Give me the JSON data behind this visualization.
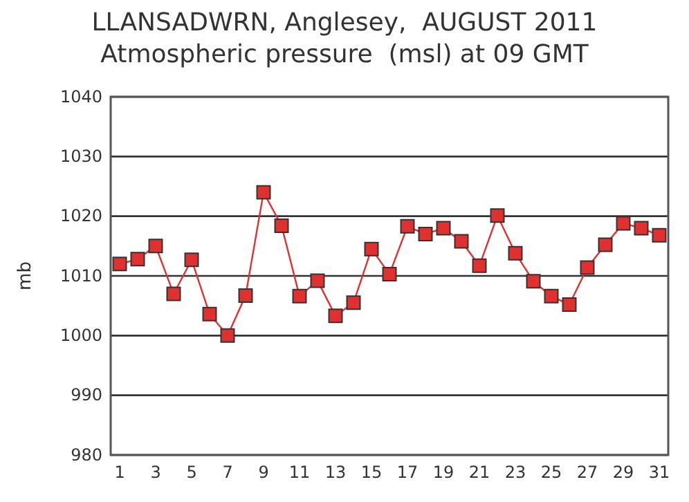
{
  "chart_data": {
    "type": "line",
    "title": "LLANSADWRN, Anglesey,  AUGUST 2011",
    "subtitle": "Atmospheric pressure  (msl) at 09 GMT",
    "ylabel": "mb",
    "x": [
      1,
      2,
      3,
      4,
      5,
      6,
      7,
      8,
      9,
      10,
      11,
      12,
      13,
      14,
      15,
      16,
      17,
      18,
      19,
      20,
      21,
      22,
      23,
      24,
      25,
      26,
      27,
      28,
      29,
      30,
      31
    ],
    "series": [
      {
        "color": "#e03030",
        "values": [
          1012,
          1012.8,
          1015,
          1007,
          1012.7,
          1003.6,
          1000,
          1006.7,
          1024,
          1018.4,
          1006.6,
          1009.2,
          1003.3,
          1005.5,
          1014.5,
          1010.3,
          1018.3,
          1017,
          1018,
          1015.8,
          1011.7,
          1020.1,
          1013.8,
          1009.1,
          1006.6,
          1005.2,
          1011.4,
          1015.2,
          1018.8,
          1018,
          1016.8
        ]
      }
    ],
    "xlim": [
      0.5,
      31.5
    ],
    "xticks": [
      1,
      3,
      5,
      7,
      9,
      11,
      13,
      15,
      17,
      19,
      21,
      23,
      25,
      27,
      29,
      31
    ],
    "ylim": [
      980,
      1040
    ],
    "yticks": [
      980,
      990,
      1000,
      1010,
      1020,
      1030,
      1040
    ],
    "grid": "y",
    "marker": "square",
    "line_style": "solid"
  }
}
